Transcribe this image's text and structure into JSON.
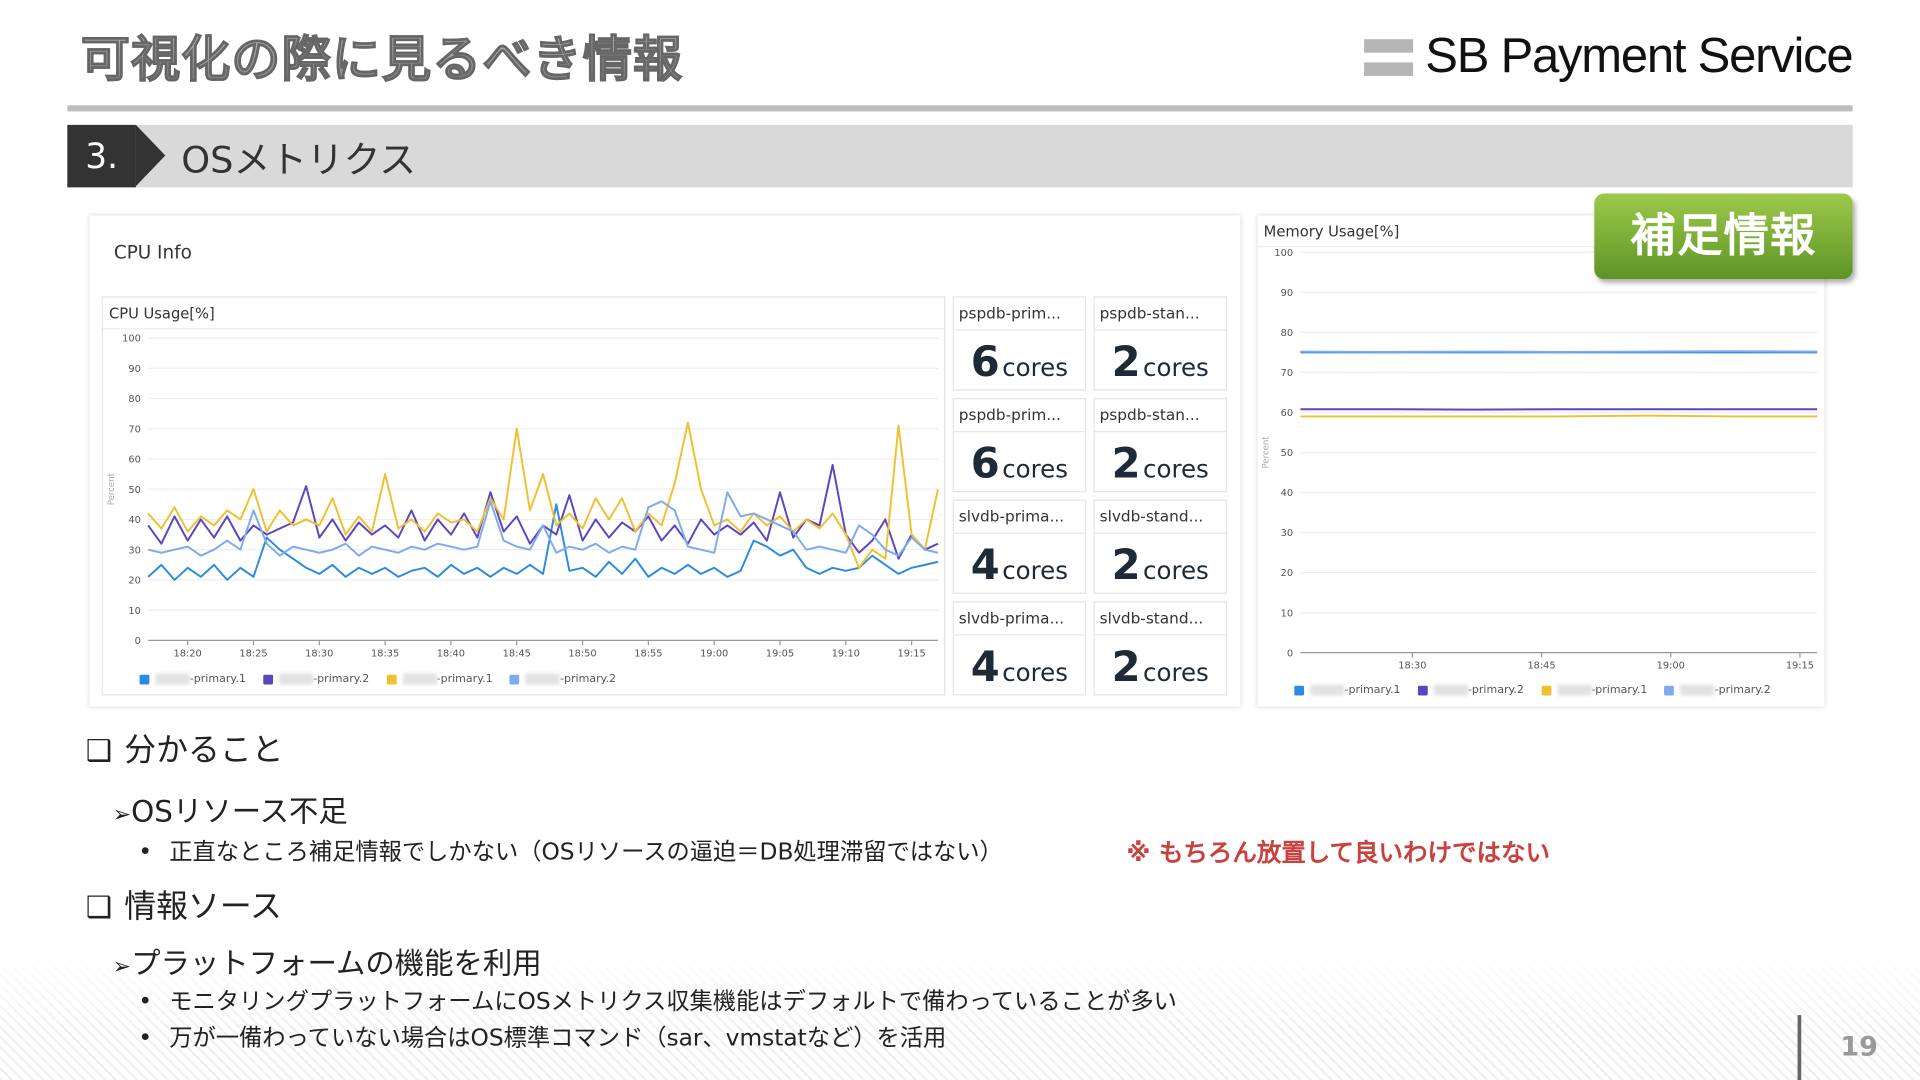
{
  "slide": {
    "title": "可視化の際に見るべき情報",
    "brand": "SB Payment Service",
    "section_number": "3.",
    "section_title": "OSメトリクス",
    "badge": "補足情報",
    "page_number": "19"
  },
  "cpu_panel": {
    "title": "CPU Info",
    "chart_title": "CPU Usage[%]",
    "y_axis_label": "Percent",
    "cards": [
      {
        "name": "pspdb-prim...",
        "value": "6",
        "unit": "cores"
      },
      {
        "name": "pspdb-stan...",
        "value": "2",
        "unit": "cores"
      },
      {
        "name": "pspdb-prim...",
        "value": "6",
        "unit": "cores"
      },
      {
        "name": "pspdb-stan...",
        "value": "2",
        "unit": "cores"
      },
      {
        "name": "slvdb-prima...",
        "value": "4",
        "unit": "cores"
      },
      {
        "name": "slvdb-stand...",
        "value": "2",
        "unit": "cores"
      },
      {
        "name": "slvdb-prima...",
        "value": "4",
        "unit": "cores"
      },
      {
        "name": "slvdb-stand...",
        "value": "2",
        "unit": "cores"
      }
    ]
  },
  "legend": [
    "-primary.1",
    "-primary.2",
    "-primary.1",
    "-primary.2"
  ],
  "memory_panel": {
    "chart_title": "Memory Usage[%]",
    "y_axis_label": "Percent"
  },
  "chart_data": [
    {
      "type": "line",
      "title": "CPU Usage[%]",
      "ylabel": "Percent",
      "ylim": [
        0,
        100
      ],
      "yticks": [
        0,
        10,
        20,
        30,
        40,
        50,
        60,
        70,
        80,
        90,
        100
      ],
      "xlim": [
        "18:17",
        "19:17"
      ],
      "xticks": [
        "18:20",
        "18:25",
        "18:30",
        "18:35",
        "18:40",
        "18:45",
        "18:50",
        "18:55",
        "19:00",
        "19:05",
        "19:10",
        "19:15"
      ],
      "grid": true,
      "legend": "bottom-left",
      "x_start": "18:17",
      "x_step_minutes": 1,
      "series": [
        {
          "name": "-primary.1",
          "color": "#2b8be0",
          "values": [
            21,
            25,
            20,
            24,
            21,
            25,
            20,
            24,
            21,
            34,
            30,
            27,
            24,
            22,
            25,
            21,
            24,
            22,
            24,
            21,
            23,
            24,
            21,
            25,
            22,
            24,
            21,
            24,
            22,
            25,
            22,
            45,
            23,
            24,
            21,
            26,
            22,
            27,
            21,
            24,
            22,
            25,
            22,
            24,
            21,
            23,
            33,
            31,
            28,
            30,
            24,
            22,
            24,
            23,
            24,
            28,
            25,
            22,
            24,
            25,
            26
          ]
        },
        {
          "name": "-primary.2",
          "color": "#5b45c0",
          "values": [
            38,
            32,
            41,
            33,
            40,
            34,
            41,
            33,
            38,
            35,
            37,
            39,
            51,
            34,
            40,
            33,
            39,
            35,
            38,
            34,
            43,
            33,
            40,
            35,
            42,
            34,
            49,
            36,
            41,
            32,
            38,
            35,
            48,
            33,
            40,
            34,
            39,
            36,
            41,
            33,
            38,
            32,
            40,
            35,
            38,
            35,
            39,
            33,
            49,
            34,
            40,
            38,
            58,
            35,
            29,
            33,
            40,
            27,
            35,
            30,
            32
          ]
        },
        {
          "name": "-primary.1",
          "color": "#f0c030",
          "values": [
            42,
            37,
            44,
            36,
            41,
            38,
            43,
            40,
            50,
            36,
            43,
            38,
            40,
            38,
            47,
            35,
            41,
            36,
            55,
            37,
            40,
            36,
            42,
            39,
            40,
            36,
            47,
            40,
            70,
            43,
            55,
            38,
            42,
            37,
            47,
            40,
            47,
            36,
            42,
            38,
            52,
            72,
            50,
            38,
            40,
            36,
            42,
            38,
            41,
            36,
            40,
            37,
            42,
            35,
            24,
            30,
            27,
            71,
            35,
            30,
            50
          ]
        },
        {
          "name": "-primary.2",
          "color": "#80aaee",
          "values": [
            30,
            29,
            30,
            31,
            28,
            30,
            33,
            30,
            43,
            32,
            28,
            31,
            30,
            29,
            30,
            32,
            28,
            31,
            30,
            29,
            31,
            30,
            32,
            31,
            30,
            31,
            46,
            33,
            31,
            30,
            38,
            29,
            31,
            30,
            32,
            29,
            31,
            30,
            44,
            46,
            43,
            31,
            30,
            29,
            49,
            41,
            42,
            40,
            38,
            36,
            30,
            31,
            30,
            29,
            38,
            35,
            30,
            28,
            34,
            30,
            29
          ]
        }
      ]
    },
    {
      "type": "line",
      "title": "Memory Usage[%]",
      "ylabel": "Percent",
      "ylim": [
        0,
        100
      ],
      "yticks": [
        0,
        10,
        20,
        30,
        40,
        50,
        60,
        70,
        80,
        90,
        100
      ],
      "xlim": [
        "18:17",
        "19:17"
      ],
      "xticks": [
        "18:30",
        "18:45",
        "19:00",
        "19:15"
      ],
      "grid": true,
      "legend": "bottom-left",
      "series": [
        {
          "name": "-primary.1",
          "color": "#2b8be0",
          "values": [
            75,
            75,
            75,
            75,
            75,
            75,
            75
          ]
        },
        {
          "name": "-primary.2",
          "color": "#5b45c0",
          "values": [
            60.8,
            60.8,
            60.7,
            60.8,
            60.8,
            60.8,
            60.8
          ]
        },
        {
          "name": "-primary.1",
          "color": "#f0c030",
          "values": [
            59,
            59,
            59,
            59,
            59.2,
            59,
            59
          ]
        },
        {
          "name": "-primary.2",
          "color": "#80aaee",
          "values": [
            75.2,
            75.1,
            75.2,
            75.1,
            75.2,
            75.3,
            75.2
          ]
        }
      ]
    }
  ],
  "body": {
    "h1": "分かること",
    "h1_sub": "OSリソース不足",
    "h1_bullet": "正直なところ補足情報でしかない（OSリソースの逼迫＝DB処理滞留ではない）",
    "note": "※ もちろん放置して良いわけではない",
    "h2": "情報ソース",
    "h2_sub": "プラットフォームの機能を利用",
    "h2_bullets": [
      "モニタリングプラットフォームにOSメトリクス収集機能はデフォルトで備わっていることが多い",
      "万が一備わっていない場合はOS標準コマンド（sar、vmstatなど）を活用"
    ],
    "checkbox_glyph": "❑",
    "arrow_glyph": "➢",
    "bullet_glyph": "•"
  }
}
